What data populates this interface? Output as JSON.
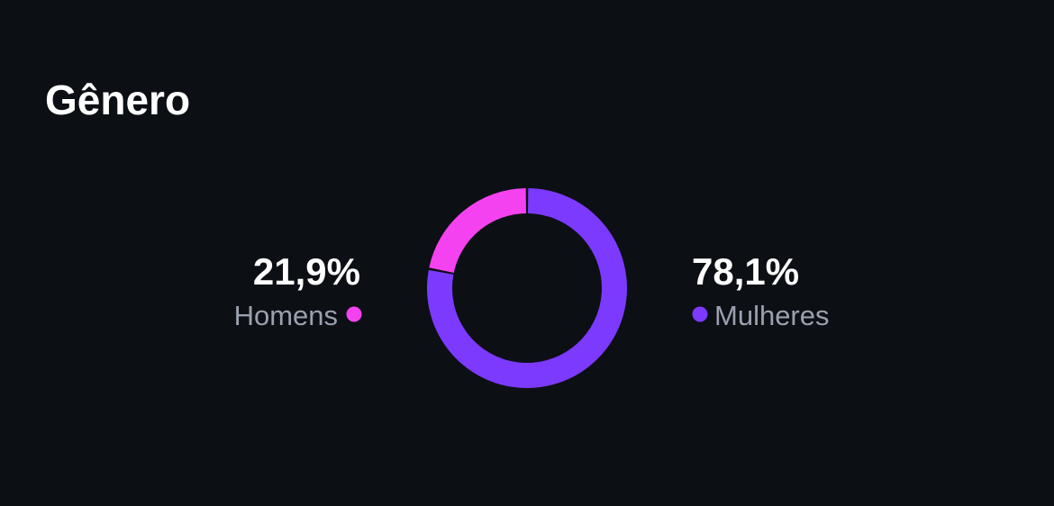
{
  "chart_data": {
    "type": "donut",
    "title": "Gênero",
    "categories": [
      "Homens",
      "Mulheres"
    ],
    "values": [
      21.9,
      78.1
    ],
    "value_labels": [
      "21,9%",
      "78,1%"
    ],
    "colors": [
      "#f542f0",
      "#7c3aff"
    ]
  }
}
